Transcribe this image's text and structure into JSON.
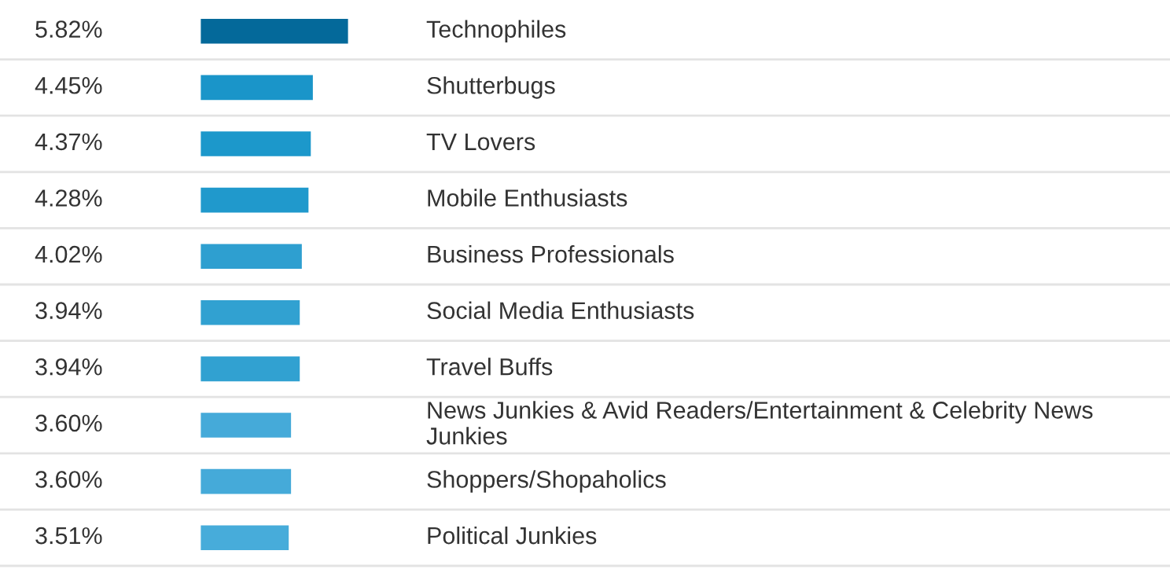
{
  "chart_data": {
    "type": "bar",
    "orientation": "horizontal",
    "data_labels": true,
    "grid": true,
    "categories": [
      "Technophiles",
      "Shutterbugs",
      "TV Lovers",
      "Mobile Enthusiasts",
      "Business Professionals",
      "Social Media Enthusiasts",
      "Travel Buffs",
      "News Junkies & Avid Readers/Entertainment & Celebrity News Junkies",
      "Shoppers/Shopaholics",
      "Political Junkies"
    ],
    "values": [
      5.82,
      4.45,
      4.37,
      4.28,
      4.02,
      3.94,
      3.94,
      3.6,
      3.6,
      3.51
    ],
    "value_labels": [
      "5.82%",
      "4.45%",
      "4.37%",
      "4.28%",
      "4.02%",
      "3.94%",
      "3.94%",
      "3.60%",
      "3.60%",
      "3.51%"
    ],
    "colors": [
      "#04699a",
      "#1a95c9",
      "#1c98cb",
      "#2099cc",
      "#2e9fd0",
      "#31a1d1",
      "#31a1d1",
      "#45aad9",
      "#45aad9",
      "#47acda"
    ]
  }
}
